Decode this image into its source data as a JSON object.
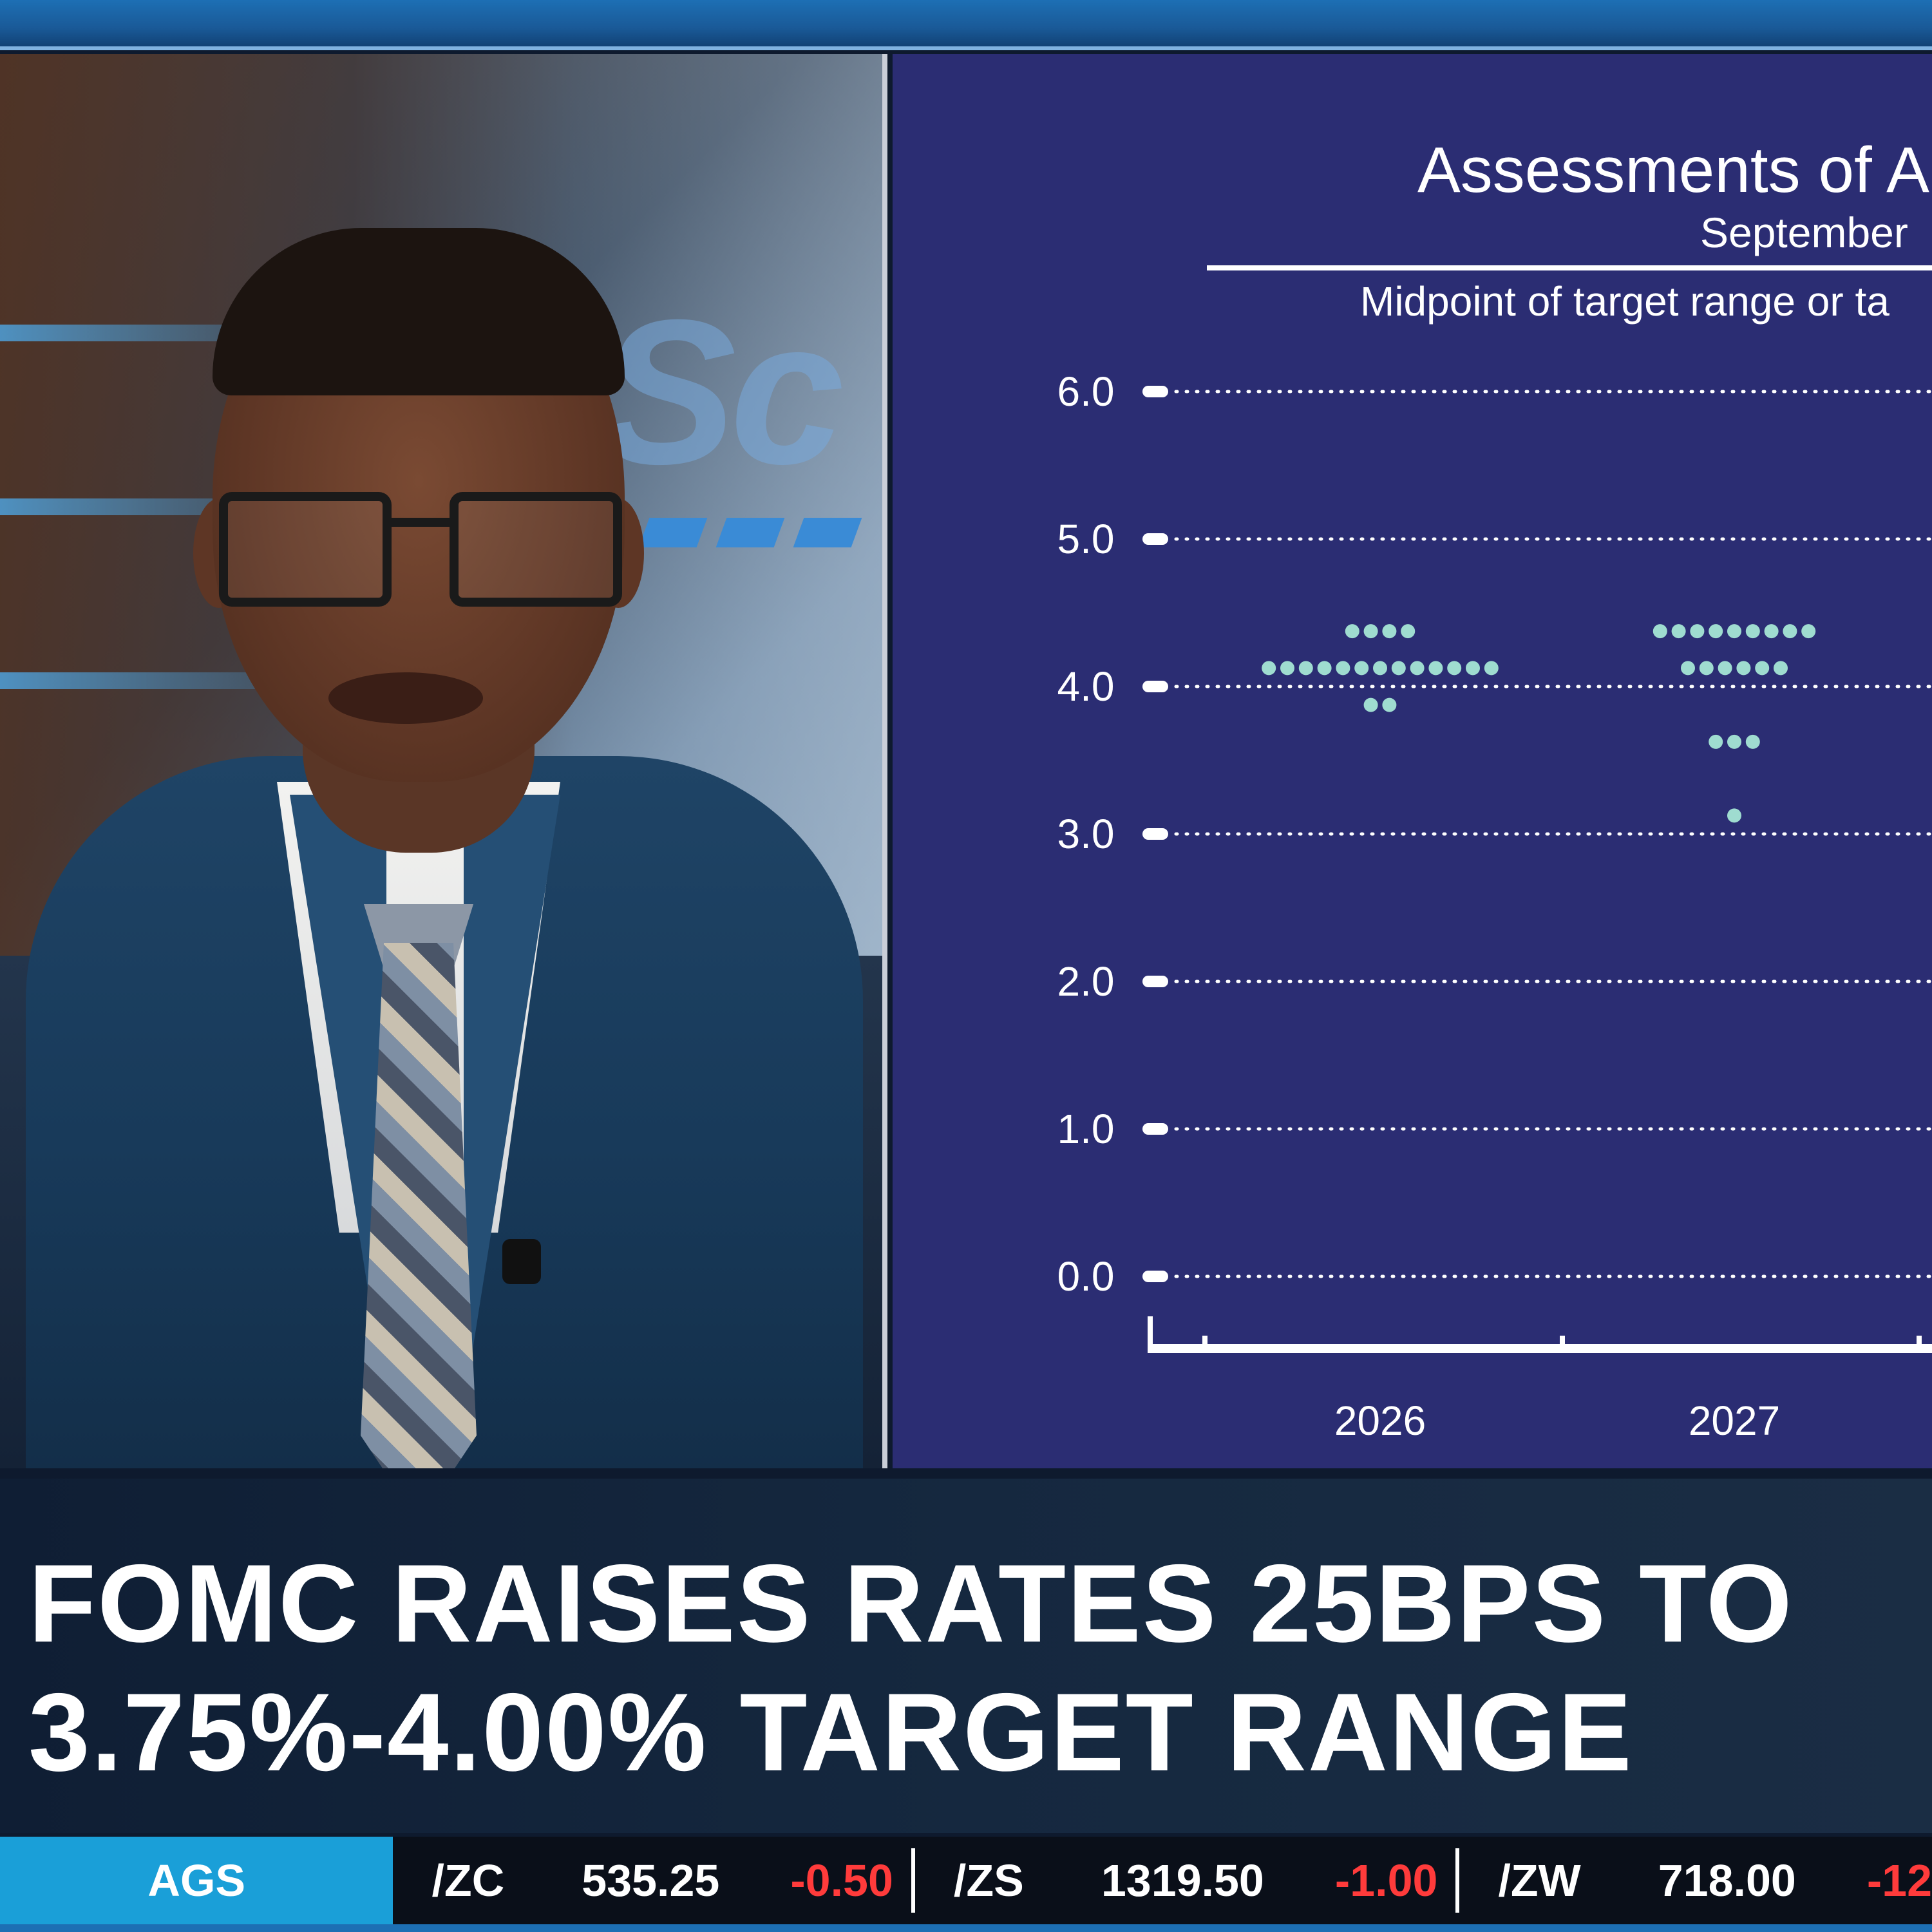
{
  "chart": {
    "title": "Assessments of A",
    "subtitle": "September",
    "axis_note": "Midpoint of target range or ta",
    "dot_color": "#9fdcd0",
    "background": "#2b2d73"
  },
  "chart_data": {
    "type": "scatter",
    "title": "Assessments of A",
    "subtitle": "September",
    "ylabel": "Midpoint of target range or ta",
    "ylim": [
      0,
      6
    ],
    "yticks": [
      "6.0",
      "5.0",
      "4.0",
      "3.0",
      "2.0",
      "1.0",
      "0.0"
    ],
    "categories": [
      "2026",
      "2027"
    ],
    "grid": true,
    "dot_plot": [
      {
        "x": "2026",
        "levels": [
          {
            "y": 4.375,
            "count": 4
          },
          {
            "y": 4.125,
            "count": 13
          },
          {
            "y": 3.875,
            "count": 2
          }
        ]
      },
      {
        "x": "2027",
        "levels": [
          {
            "y": 4.375,
            "count": 9
          },
          {
            "y": 4.125,
            "count": 6
          },
          {
            "y": 3.625,
            "count": 3
          },
          {
            "y": 3.125,
            "count": 1
          }
        ]
      }
    ]
  },
  "studio": {
    "logo_fragment": "Sc"
  },
  "headline": {
    "line1": "FOMC RAISES RATES 25BPS TO",
    "line2": "3.75%-4.00% TARGET RANGE"
  },
  "ticker": {
    "category": "AGS",
    "items": [
      {
        "symbol": "/ZC",
        "price": "535.25",
        "change": "-0.50"
      },
      {
        "symbol": "/ZS",
        "price": "1319.50",
        "change": "-1.00"
      },
      {
        "symbol": "/ZW",
        "price": "718.00",
        "change": "-12"
      }
    ],
    "down_color": "#ff3b3b"
  }
}
